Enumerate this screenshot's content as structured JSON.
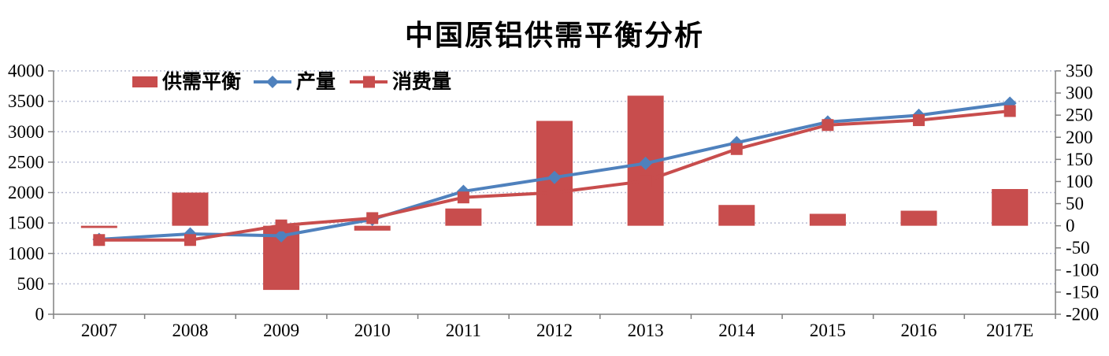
{
  "title": "中国原铝供需平衡分析",
  "chart_data": {
    "type": "combo-bar-line",
    "categories": [
      "2007",
      "2008",
      "2009",
      "2010",
      "2011",
      "2012",
      "2013",
      "2014",
      "2015",
      "2016",
      "2017E"
    ],
    "series": [
      {
        "name": "供需平衡",
        "type": "bar",
        "axis": "right",
        "color": "#c84d4d",
        "marker": "rect",
        "values": [
          -5,
          75,
          -145,
          -11,
          39,
          237,
          294,
          47,
          27,
          34,
          83
        ]
      },
      {
        "name": "产量",
        "type": "line",
        "axis": "left",
        "color": "#4f81bd",
        "marker": "diamond",
        "values": [
          1230,
          1320,
          1290,
          1560,
          2020,
          2250,
          2480,
          2820,
          3160,
          3270,
          3470
        ]
      },
      {
        "name": "消费量",
        "type": "line",
        "axis": "left",
        "color": "#c84d4d",
        "marker": "square",
        "values": [
          1220,
          1220,
          1460,
          1580,
          1920,
          2000,
          2190,
          2715,
          3110,
          3190,
          3340
        ]
      }
    ],
    "left_axis": {
      "min": 0,
      "max": 4000,
      "step": 500,
      "tick_labels": [
        "0",
        "500",
        "1000",
        "1500",
        "2000",
        "2500",
        "3000",
        "3500",
        "4000"
      ]
    },
    "right_axis": {
      "min": -200,
      "max": 350,
      "step": 50,
      "tick_labels": [
        "-200",
        "-150",
        "-100",
        "-50",
        "0",
        "50",
        "100",
        "150",
        "200",
        "250",
        "300",
        "350"
      ]
    },
    "legend": {
      "position": "top-left-inside",
      "items": [
        "供需平衡",
        "产量",
        "消费量"
      ]
    },
    "grid": {
      "horizontal": "dotted",
      "color": "#b9bdd4"
    },
    "axis_color": "#808080",
    "text_color": "#000000"
  }
}
